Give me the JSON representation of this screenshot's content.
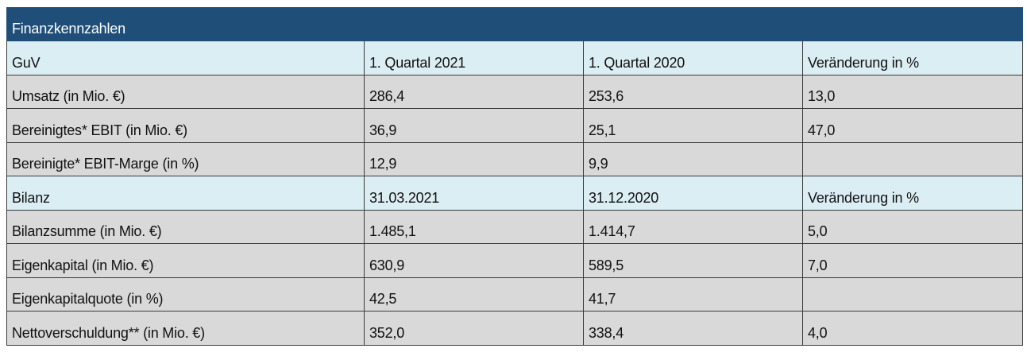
{
  "table": {
    "title": "Finanzkennzahlen",
    "sections": [
      {
        "header": [
          "GuV",
          "1. Quartal 2021",
          "1. Quartal 2020",
          "Veränderung in %"
        ],
        "rows": [
          [
            "Umsatz (in Mio. €)",
            "286,4",
            "253,6",
            "13,0"
          ],
          [
            "Bereinigtes* EBIT (in Mio. €)",
            "36,9",
            "25,1",
            "47,0"
          ],
          [
            "Bereinigte* EBIT-Marge (in %)",
            "12,9",
            "9,9",
            null
          ]
        ]
      },
      {
        "header": [
          "Bilanz",
          "31.03.2021",
          "31.12.2020",
          "Veränderung in %"
        ],
        "rows": [
          [
            "Bilanzsumme (in Mio. €)",
            "1.485,1",
            "1.414,7",
            "5,0"
          ],
          [
            "Eigenkapital (in Mio. €)",
            "630,9",
            "589,5",
            "7,0"
          ],
          [
            "Eigenkapitalquote (in %)",
            "42,5",
            "41,7",
            null
          ],
          [
            "Nettoverschuldung** (in Mio. €)",
            "352,0",
            "338,4",
            "4,0"
          ]
        ]
      }
    ]
  }
}
